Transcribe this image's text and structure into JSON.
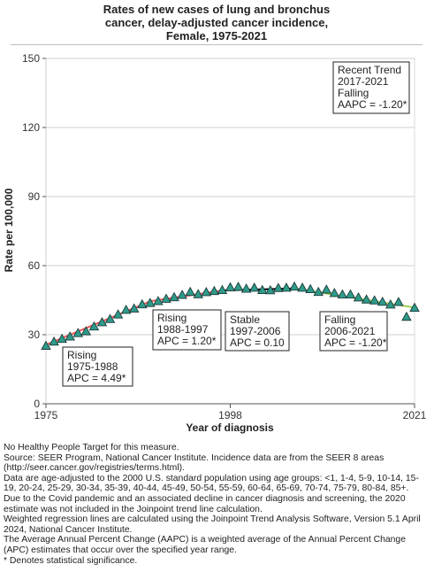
{
  "chart_data": {
    "type": "line",
    "title_lines": [
      "Rates of new cases of lung and bronchus",
      "cancer, delay-adjusted cancer incidence,",
      "Female,  1975-2021"
    ],
    "xlabel": "Year of diagnosis",
    "ylabel": "Rate per 100,000",
    "xlim": [
      1975,
      2021
    ],
    "ylim": [
      0,
      150
    ],
    "x_ticks": [
      1975,
      1998,
      2021
    ],
    "y_ticks": [
      0,
      30,
      60,
      90,
      120,
      150
    ],
    "grid": "horizontal",
    "observed": {
      "x": [
        1975,
        1976,
        1977,
        1978,
        1979,
        1980,
        1981,
        1982,
        1983,
        1984,
        1985,
        1986,
        1987,
        1988,
        1989,
        1990,
        1991,
        1992,
        1993,
        1994,
        1995,
        1996,
        1997,
        1998,
        1999,
        2000,
        2001,
        2002,
        2003,
        2004,
        2005,
        2006,
        2007,
        2008,
        2009,
        2010,
        2011,
        2012,
        2013,
        2014,
        2015,
        2016,
        2017,
        2018,
        2019,
        2020,
        2021
      ],
      "y": [
        25.0,
        26.8,
        28.0,
        29.0,
        30.5,
        31.3,
        33.4,
        35.2,
        36.6,
        38.6,
        40.6,
        41.2,
        43.0,
        43.6,
        44.4,
        45.4,
        46.1,
        47.1,
        48.4,
        47.4,
        48.3,
        48.8,
        49.2,
        50.4,
        50.6,
        49.8,
        50.2,
        49.2,
        49.1,
        50.1,
        50.2,
        50.7,
        50.2,
        49.6,
        48.4,
        49.4,
        47.9,
        47.3,
        47.3,
        46.0,
        45.1,
        44.7,
        44.1,
        42.9,
        44.0,
        37.6,
        41.5
      ]
    },
    "trend_segments": [
      {
        "start": 1975,
        "end": 1988,
        "y_start": 25.6,
        "y_end": 44.5,
        "color": "#e8595a"
      },
      {
        "start": 1988,
        "end": 1997,
        "y_start": 44.5,
        "y_end": 49.2,
        "color": "#e8595a"
      },
      {
        "start": 1997,
        "end": 2006,
        "y_start": 49.2,
        "y_end": 50.1,
        "color": "#000000"
      },
      {
        "start": 2006,
        "end": 2021,
        "y_start": 50.1,
        "y_end": 41.8,
        "color": "#9ccc4e"
      }
    ],
    "annotations": [
      {
        "lines": [
          "Rising",
          "1975-1988",
          "APC =  4.49*"
        ]
      },
      {
        "lines": [
          "Rising",
          "1988-1997",
          "APC =  1.20*"
        ]
      },
      {
        "lines": [
          "Stable",
          "1997-2006",
          "APC =  0.10"
        ]
      },
      {
        "lines": [
          "Falling",
          "2006-2021",
          "APC = -1.20*"
        ]
      },
      {
        "lines": [
          "Recent Trend",
          "2017-2021",
          "Falling",
          "AAPC = -1.20*"
        ]
      }
    ],
    "marker": {
      "shape": "triangle",
      "fill": "#2e9b8a",
      "stroke": "#1f3b3a"
    }
  },
  "footnotes": [
    "No Healthy People Target for this measure.",
    "Source: SEER Program, National Cancer Institute. Incidence data are from the SEER 8 areas (http://seer.cancer.gov/registries/terms.html).",
    "Data are age-adjusted to the 2000 U.S. standard population using age groups: <1, 1-4, 5-9, 10-14, 15-19, 20-24, 25-29, 30-34, 35-39, 40-44, 45-49, 50-54, 55-59, 60-64, 65-69, 70-74, 75-79, 80-84, 85+.",
    "Due to the Covid pandemic and an associated decline in cancer diagnosis and screening, the 2020 estimate was not included in the Joinpoint trend line calculation.",
    "Weighted regression lines are calculated using the Joinpoint Trend Analysis Software, Version 5.1 April 2024, National Cancer Institute.",
    "The Average Annual Percent Change (AAPC) is a weighted average of the Annual Percent Change (APC) estimates that occur over the specified year range.",
    "* Denotes statistical significance."
  ]
}
